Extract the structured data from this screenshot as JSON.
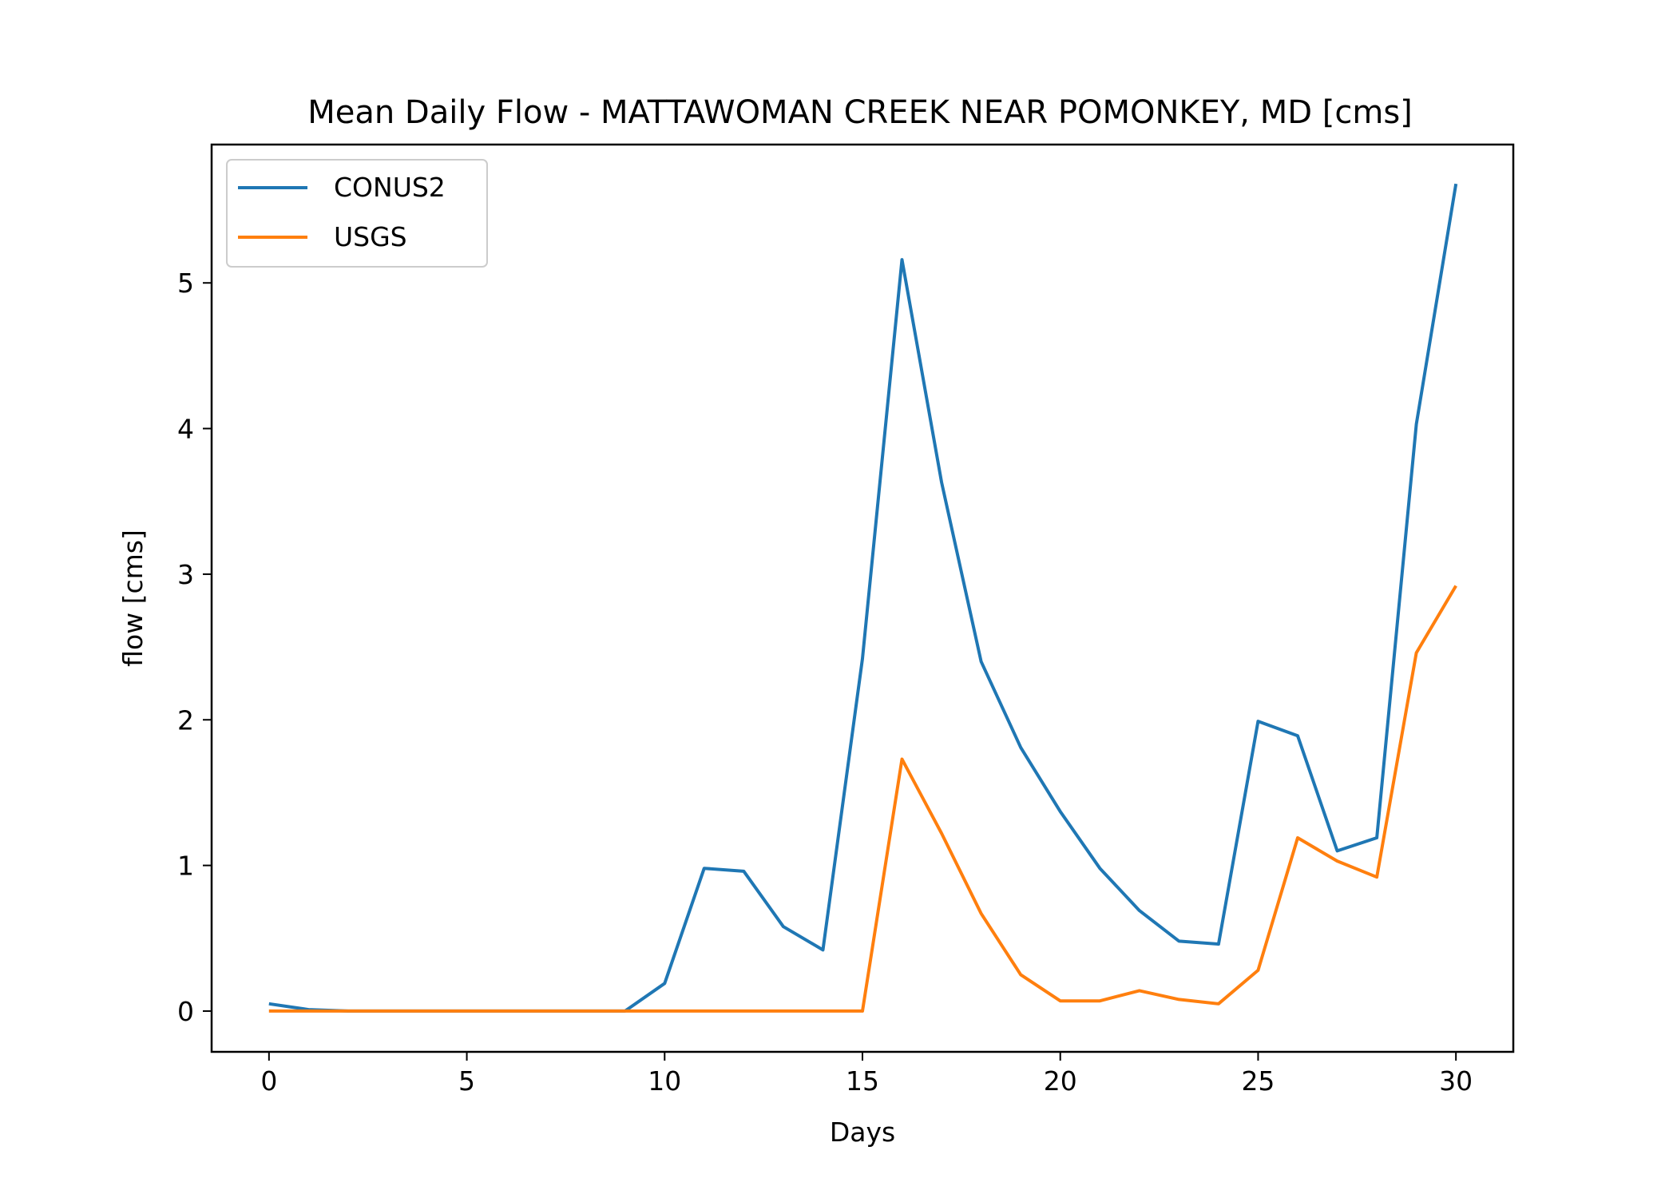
{
  "chart_data": {
    "type": "line",
    "title": "Mean Daily Flow - MATTAWOMAN CREEK NEAR POMONKEY, MD [cms]",
    "xlabel": "Days",
    "ylabel": "flow [cms]",
    "xlim": [
      -1.45,
      31.45
    ],
    "ylim": [
      -0.28,
      5.95
    ],
    "xticks": [
      0,
      5,
      10,
      15,
      20,
      25,
      30
    ],
    "yticks": [
      0,
      1,
      2,
      3,
      4,
      5
    ],
    "grid": false,
    "legend_position": "upper-left",
    "x": [
      0,
      1,
      2,
      3,
      4,
      5,
      6,
      7,
      8,
      9,
      10,
      11,
      12,
      13,
      14,
      15,
      16,
      17,
      18,
      19,
      20,
      21,
      22,
      23,
      24,
      25,
      26,
      27,
      28,
      29,
      30
    ],
    "series": [
      {
        "name": "CONUS2",
        "color": "#1f77b4",
        "values": [
          0.05,
          0.01,
          0.0,
          0.0,
          0.0,
          0.0,
          0.0,
          0.0,
          0.0,
          0.0,
          0.19,
          0.98,
          0.96,
          0.58,
          0.42,
          2.42,
          5.16,
          3.63,
          2.4,
          1.81,
          1.37,
          0.98,
          0.69,
          0.48,
          0.46,
          1.99,
          1.89,
          1.1,
          1.19,
          4.03,
          5.68
        ]
      },
      {
        "name": "USGS",
        "color": "#ff7f0e",
        "values": [
          0.0,
          0.0,
          0.0,
          0.0,
          0.0,
          0.0,
          0.0,
          0.0,
          0.0,
          0.0,
          0.0,
          0.0,
          0.0,
          0.0,
          0.0,
          0.0,
          1.73,
          1.22,
          0.67,
          0.25,
          0.07,
          0.07,
          0.14,
          0.08,
          0.05,
          0.28,
          1.19,
          1.03,
          0.92,
          2.46,
          2.92
        ]
      }
    ]
  }
}
